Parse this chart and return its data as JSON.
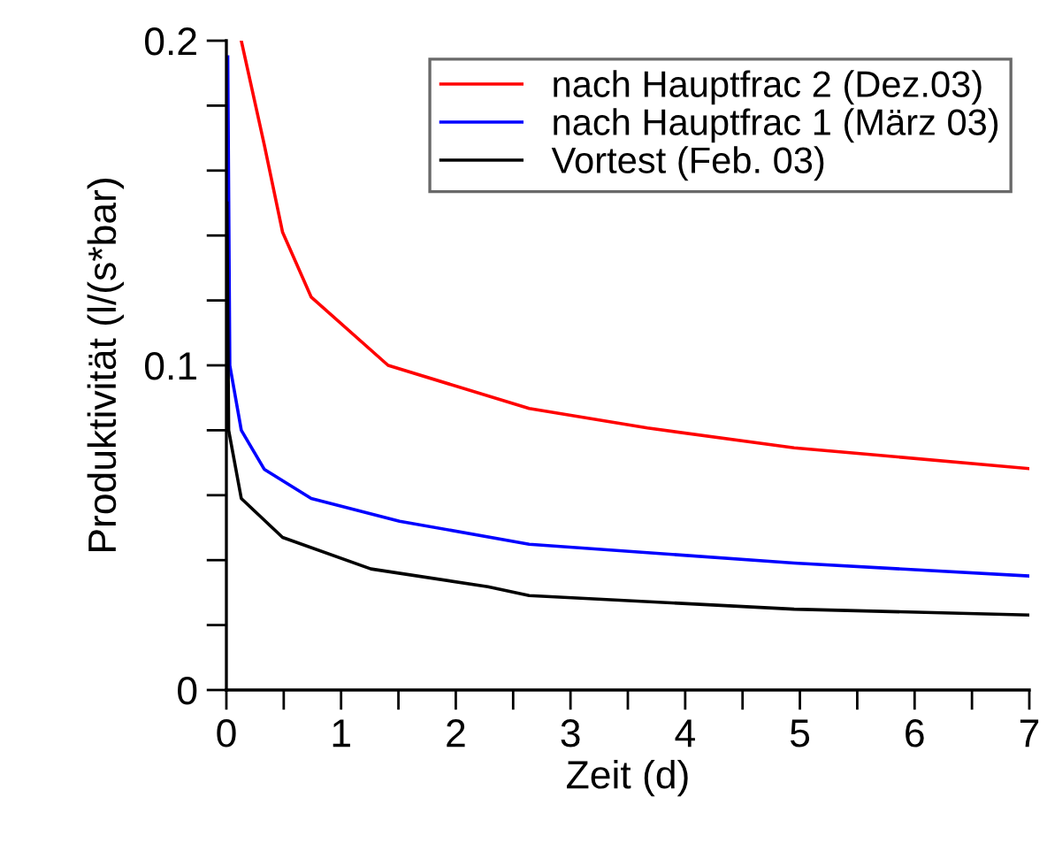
{
  "chart_data": {
    "type": "line",
    "xlabel": "Zeit (d)",
    "ylabel": "Produktivität (l/(s*bar)",
    "xlim": [
      0,
      7
    ],
    "ylim": [
      0,
      0.2
    ],
    "xticks": [
      0,
      {
        "value": 0.5,
        "label": null
      },
      1,
      {
        "value": 1.5,
        "label": null
      },
      2,
      {
        "value": 2.5,
        "label": null
      },
      3,
      {
        "value": 3.5,
        "label": null
      },
      4,
      {
        "value": 4.5,
        "label": null
      },
      5,
      {
        "value": 5.5,
        "label": null
      },
      6,
      {
        "value": 6.5,
        "label": null
      },
      7
    ],
    "yticks": [
      0,
      {
        "value": 0.02,
        "label": null
      },
      {
        "value": 0.04,
        "label": null
      },
      {
        "value": 0.06,
        "label": null
      },
      {
        "value": 0.08,
        "label": null
      },
      0.1,
      {
        "value": 0.12,
        "label": null
      },
      {
        "value": 0.14,
        "label": null
      },
      {
        "value": 0.16,
        "label": null
      },
      {
        "value": 0.18,
        "label": null
      },
      0.2
    ],
    "grid": false,
    "legend": "top right",
    "marker": "none",
    "line_style": "solid",
    "series": [
      {
        "name": "nach Hauptfrac 2 (Dez.03)",
        "color": "#ff0000",
        "x": [
          0.13,
          0.33,
          0.49,
          0.74,
          1.41,
          2.64,
          3.67,
          4.95,
          7
        ],
        "values": [
          0.2,
          0.168,
          0.141,
          0.121,
          0.1,
          0.0867,
          0.0807,
          0.0746,
          0.0682
        ]
      },
      {
        "name": "nach Hauptfrac 1 (März 03)",
        "color": "#0000ff",
        "x": [
          0.012,
          0.03,
          0.13,
          0.33,
          0.74,
          1.51,
          2.64,
          4.95,
          7
        ],
        "values": [
          0.195,
          0.1,
          0.08,
          0.068,
          0.059,
          0.052,
          0.0449,
          0.0391,
          0.0351
        ]
      },
      {
        "name": "Vortest (Feb. 03)",
        "color": "#000000",
        "x": [
          0.005,
          0.02,
          0.13,
          0.49,
          1.26,
          2.28,
          2.64,
          4.95,
          7
        ],
        "values": [
          0.15,
          0.08,
          0.059,
          0.047,
          0.0373,
          0.0318,
          0.0291,
          0.0249,
          0.0231
        ]
      }
    ]
  }
}
